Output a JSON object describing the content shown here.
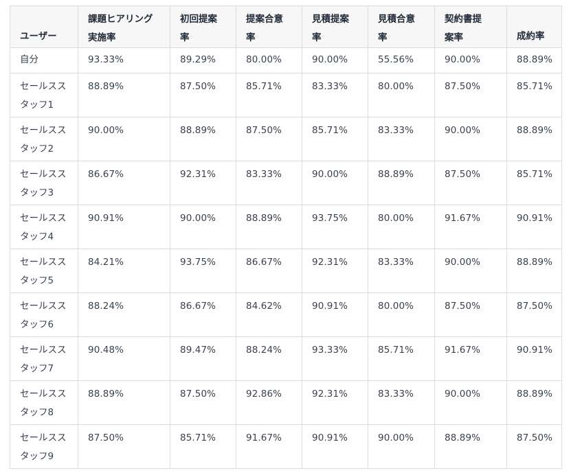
{
  "table": {
    "headers": [
      "ユーザー",
      "課題ヒアリング実施率",
      "初回提案率",
      "提案合意率",
      "見積提案率",
      "見積合意率",
      "契約書提案率",
      "成約率"
    ],
    "header_lines": [
      [
        "ユーザー"
      ],
      [
        "課題ヒアリング",
        "実施率"
      ],
      [
        "初回提案",
        "率"
      ],
      [
        "提案合意",
        "率"
      ],
      [
        "見積提案",
        "率"
      ],
      [
        "見積合意",
        "率"
      ],
      [
        "契約書提",
        "案率"
      ],
      [
        "成約率"
      ]
    ],
    "rows": [
      {
        "user": [
          "自分"
        ],
        "values": [
          "93.33%",
          "89.29%",
          "80.00%",
          "90.00%",
          "55.56%",
          "90.00%",
          "88.89%"
        ]
      },
      {
        "user": [
          "セールスス",
          "タッフ1"
        ],
        "values": [
          "88.89%",
          "87.50%",
          "85.71%",
          "83.33%",
          "80.00%",
          "87.50%",
          "85.71%"
        ]
      },
      {
        "user": [
          "セールスス",
          "タッフ2"
        ],
        "values": [
          "90.00%",
          "88.89%",
          "87.50%",
          "85.71%",
          "83.33%",
          "90.00%",
          "88.89%"
        ]
      },
      {
        "user": [
          "セールスス",
          "タッフ3"
        ],
        "values": [
          "86.67%",
          "92.31%",
          "83.33%",
          "90.00%",
          "88.89%",
          "87.50%",
          "85.71%"
        ]
      },
      {
        "user": [
          "セールスス",
          "タッフ4"
        ],
        "values": [
          "90.91%",
          "90.00%",
          "88.89%",
          "93.75%",
          "80.00%",
          "91.67%",
          "90.91%"
        ]
      },
      {
        "user": [
          "セールスス",
          "タッフ5"
        ],
        "values": [
          "84.21%",
          "93.75%",
          "86.67%",
          "92.31%",
          "83.33%",
          "90.00%",
          "88.89%"
        ]
      },
      {
        "user": [
          "セールスス",
          "タッフ6"
        ],
        "values": [
          "88.24%",
          "86.67%",
          "84.62%",
          "90.91%",
          "80.00%",
          "87.50%",
          "87.50%"
        ]
      },
      {
        "user": [
          "セールスス",
          "タッフ7"
        ],
        "values": [
          "90.48%",
          "89.47%",
          "88.24%",
          "93.33%",
          "85.71%",
          "91.67%",
          "90.91%"
        ]
      },
      {
        "user": [
          "セールスス",
          "タッフ8"
        ],
        "values": [
          "88.89%",
          "87.50%",
          "92.86%",
          "92.31%",
          "83.33%",
          "90.00%",
          "88.89%"
        ]
      },
      {
        "user": [
          "セールスス",
          "タッフ9"
        ],
        "values": [
          "87.50%",
          "85.71%",
          "91.67%",
          "90.91%",
          "90.00%",
          "88.89%",
          "87.50%"
        ]
      }
    ]
  }
}
